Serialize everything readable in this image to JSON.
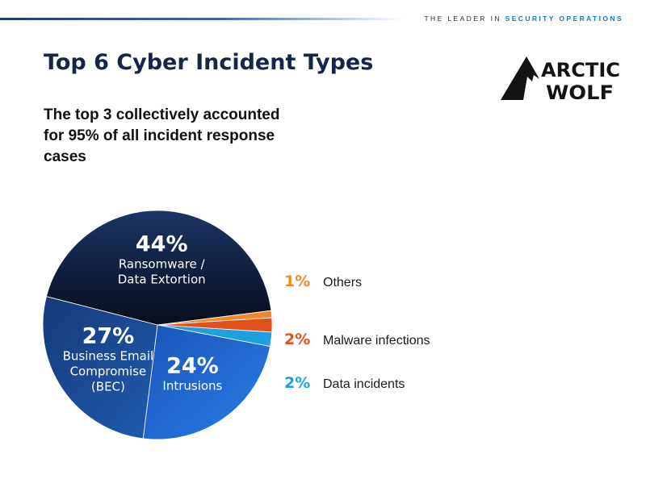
{
  "header": {
    "tagline_prefix": "THE LEADER IN",
    "tagline_accent": "SECURITY OPERATIONS"
  },
  "title": "Top 6 Cyber Incident Types",
  "subtitle": "The top 3 collectively accounted for 95% of all incident response cases",
  "logo": {
    "line1": "ARCTIC",
    "line2": "WOLF"
  },
  "chart_data": {
    "type": "pie",
    "title": "",
    "slices": [
      {
        "value": 44,
        "pct_label": "44%",
        "label_lines": [
          "Ransomware /",
          "Data Extortion"
        ],
        "color": "#0f1f3d"
      },
      {
        "value": 1,
        "pct_label": "1%",
        "legend": "Others",
        "color": "#ef8a2a"
      },
      {
        "value": 2,
        "pct_label": "2%",
        "legend": "Malware infections",
        "color": "#e2501c"
      },
      {
        "value": 2,
        "pct_label": "2%",
        "legend": "Data incidents",
        "color": "#1ea0e0"
      },
      {
        "value": 24,
        "pct_label": "24%",
        "label_lines": [
          "Intrusions"
        ],
        "color": "#1f62cf"
      },
      {
        "value": 27,
        "pct_label": "27%",
        "label_lines": [
          "Business Email",
          "Compromise",
          "(BEC)"
        ],
        "color": "#174d96"
      }
    ]
  }
}
